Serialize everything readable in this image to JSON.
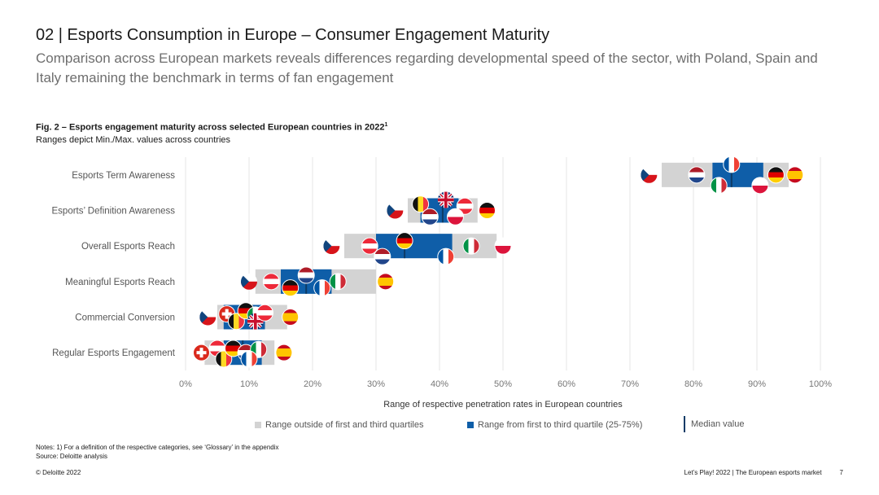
{
  "header": {
    "title": "02 | Esports Consumption in Europe – Consumer Engagement Maturity",
    "subtitle": "Comparison across European markets reveals differences regarding developmental speed of the sector, with Poland, Spain and Italy remaining the benchmark in terms of fan engagement"
  },
  "figure": {
    "title": "Fig. 2 – Esports engagement maturity across selected European countries in 2022",
    "title_sup": "1",
    "subtitle": "Ranges depict Min./Max. values across countries"
  },
  "chart_data": {
    "type": "range-bar",
    "xlabel": "Range of respective penetration rates in European countries",
    "xlim": [
      0,
      100
    ],
    "ticks": [
      "0%",
      "10%",
      "20%",
      "30%",
      "40%",
      "50%",
      "60%",
      "70%",
      "80%",
      "90%",
      "100%"
    ],
    "colors": {
      "outer": "#d3d3d3",
      "iqr": "#0f5ea8",
      "median": "#0d3b66",
      "grid": "#e6e6e6"
    },
    "rows": [
      {
        "label": "Esports Term Awareness",
        "min": 75,
        "q1": 83,
        "median": 86,
        "q3": 91,
        "max": 95,
        "markers": [
          {
            "country": "CZ",
            "value": 73,
            "offset": 0
          },
          {
            "country": "NL",
            "value": 80.5,
            "offset": 0
          },
          {
            "country": "IT",
            "value": 84,
            "offset": 1
          },
          {
            "country": "FR",
            "value": 86,
            "offset": -1
          },
          {
            "country": "PL",
            "value": 90.5,
            "offset": 1
          },
          {
            "country": "DE",
            "value": 93,
            "offset": 0
          },
          {
            "country": "ES",
            "value": 96,
            "offset": 0
          }
        ]
      },
      {
        "label": "Esports’ Definition Awareness",
        "min": 35,
        "q1": 37,
        "median": 40.5,
        "q3": 43,
        "max": 46,
        "markers": [
          {
            "country": "CZ",
            "value": 33,
            "offset": 0
          },
          {
            "country": "BE",
            "value": 37,
            "offset": -0.6
          },
          {
            "country": "NL",
            "value": 38.5,
            "offset": 0.6
          },
          {
            "country": "UK",
            "value": 41,
            "offset": -1
          },
          {
            "country": "AT",
            "value": 44,
            "offset": -0.4
          },
          {
            "country": "PL",
            "value": 42.5,
            "offset": 0.6
          },
          {
            "country": "DE",
            "value": 47.5,
            "offset": 0
          }
        ]
      },
      {
        "label": "Overall Esports Reach",
        "min": 25,
        "q1": 30,
        "median": 34.5,
        "q3": 42,
        "max": 49,
        "markers": [
          {
            "country": "CZ",
            "value": 23,
            "offset": 0
          },
          {
            "country": "AT",
            "value": 29,
            "offset": 0
          },
          {
            "country": "NL",
            "value": 31,
            "offset": 1
          },
          {
            "country": "DE",
            "value": 34.5,
            "offset": -0.5
          },
          {
            "country": "FR",
            "value": 41,
            "offset": 1
          },
          {
            "country": "IT",
            "value": 45,
            "offset": 0
          },
          {
            "country": "PL",
            "value": 50,
            "offset": 0
          }
        ]
      },
      {
        "label": "Meaningful Esports Reach",
        "min": 11,
        "q1": 15,
        "median": 19,
        "q3": 23,
        "max": 30,
        "markers": [
          {
            "country": "CZ",
            "value": 10,
            "offset": 0
          },
          {
            "country": "AT",
            "value": 13.5,
            "offset": 0
          },
          {
            "country": "NL",
            "value": 19,
            "offset": -0.6
          },
          {
            "country": "DE",
            "value": 16.5,
            "offset": 0.6
          },
          {
            "country": "IT",
            "value": 24,
            "offset": 0
          },
          {
            "country": "FR",
            "value": 21.5,
            "offset": 0.6
          },
          {
            "country": "ES",
            "value": 31.5,
            "offset": 0
          }
        ]
      },
      {
        "label": "Commercial Conversion",
        "min": 5,
        "q1": 6,
        "median": 10.5,
        "q3": 12.5,
        "max": 16,
        "markers": [
          {
            "country": "CZ",
            "value": 3.5,
            "offset": 0
          },
          {
            "country": "CH",
            "value": 6.5,
            "offset": -0.3
          },
          {
            "country": "BE",
            "value": 8,
            "offset": 0.4
          },
          {
            "country": "DE",
            "value": 9.5,
            "offset": -0.6
          },
          {
            "country": "IT",
            "value": 11,
            "offset": -0.2
          },
          {
            "country": "UK",
            "value": 11,
            "offset": 0.4
          },
          {
            "country": "AT",
            "value": 12.5,
            "offset": -0.4
          },
          {
            "country": "ES",
            "value": 16.5,
            "offset": 0
          }
        ]
      },
      {
        "label": "Regular Esports Engagement",
        "min": 3,
        "q1": 6,
        "median": 9,
        "q3": 12,
        "max": 14,
        "markers": [
          {
            "country": "CH",
            "value": 2.5,
            "offset": 0
          },
          {
            "country": "AT",
            "value": 5,
            "offset": -0.4
          },
          {
            "country": "BE",
            "value": 6,
            "offset": 0.6
          },
          {
            "country": "DE",
            "value": 7.5,
            "offset": -0.4
          },
          {
            "country": "NL",
            "value": 9.5,
            "offset": 0
          },
          {
            "country": "IT",
            "value": 11.5,
            "offset": -0.3
          },
          {
            "country": "FR",
            "value": 10,
            "offset": 0.6
          },
          {
            "country": "ES",
            "value": 15.5,
            "offset": 0
          }
        ]
      }
    ]
  },
  "legend": {
    "outer": "Range outside of first and third quartiles",
    "iqr": "Range from first to third quartile (25-75%)",
    "median": "Median value"
  },
  "notes": {
    "line1": "Notes: 1) For a definition of the respective categories, see ‘Glossary’ in the appendix",
    "line2": "Source: Deloitte analysis"
  },
  "footer": {
    "left": "© Deloitte 2022",
    "right": "Let’s Play! 2022 | The European esports market",
    "page": "7"
  }
}
